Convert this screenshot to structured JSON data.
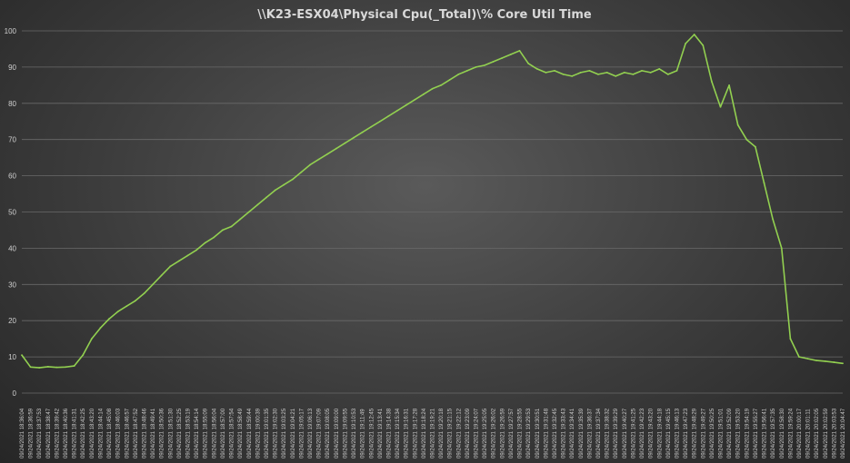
{
  "chart_data": {
    "type": "line",
    "title": "\\\\K23-ESX04\\Physical Cpu(_Total)\\% Core Util Time",
    "xlabel": "",
    "ylabel": "",
    "ylim": [
      0,
      100
    ],
    "yticks": [
      0,
      10,
      20,
      30,
      40,
      50,
      60,
      70,
      80,
      90,
      100
    ],
    "grid": true,
    "legend": "none",
    "color": "#92d050",
    "x": [
      "09/24/2021 18:36:04",
      "09/24/2021 18:36:59",
      "09/24/2021 18:37:53",
      "09/24/2021 18:38:47",
      "09/24/2021 18:39:42",
      "09/24/2021 18:40:36",
      "09/24/2021 18:41:31",
      "09/24/2021 18:42:25",
      "09/24/2021 18:43:20",
      "09/24/2021 18:44:14",
      "09/24/2021 18:45:08",
      "09/24/2021 18:46:03",
      "09/24/2021 18:46:57",
      "09/24/2021 18:47:52",
      "09/24/2021 18:48:46",
      "09/24/2021 18:49:41",
      "09/24/2021 18:50:36",
      "09/24/2021 18:51:30",
      "09/24/2021 18:52:25",
      "09/24/2021 18:53:19",
      "09/24/2021 18:54:14",
      "09/24/2021 18:55:09",
      "09/24/2021 18:56:04",
      "09/24/2021 18:57:00",
      "09/24/2021 18:57:54",
      "09/24/2021 18:58:49",
      "09/24/2021 18:59:44",
      "09/24/2021 19:00:39",
      "09/24/2021 19:01:35",
      "09/24/2021 19:02:30",
      "09/24/2021 19:03:25",
      "09/24/2021 19:04:21",
      "09/24/2021 19:05:17",
      "09/24/2021 19:06:13",
      "09/24/2021 19:07:09",
      "09/24/2021 19:08:05",
      "09/24/2021 19:09:00",
      "09/24/2021 19:09:55",
      "09/24/2021 19:10:53",
      "09/24/2021 19:11:49",
      "09/24/2021 19:12:45",
      "09/24/2021 19:13:41",
      "09/24/2021 19:14:38",
      "09/24/2021 19:15:34",
      "09/24/2021 19:16:31",
      "09/24/2021 19:17:28",
      "09/24/2021 19:18:24",
      "09/24/2021 19:19:21",
      "09/24/2021 19:20:18",
      "09/24/2021 19:21:15",
      "09/24/2021 19:22:12",
      "09/24/2021 19:23:09",
      "09/24/2021 19:24:07",
      "09/24/2021 19:25:05",
      "09/24/2021 19:26:02",
      "09/24/2021 19:26:59",
      "09/24/2021 19:27:57",
      "09/24/2021 19:28:55",
      "09/24/2021 19:29:53",
      "09/24/2021 19:30:51",
      "09/24/2021 19:31:48",
      "09/24/2021 19:32:45",
      "09/24/2021 19:33:43",
      "09/24/2021 19:34:41",
      "09/24/2021 19:35:39",
      "09/24/2021 19:36:37",
      "09/24/2021 19:37:34",
      "09/24/2021 19:38:32",
      "09/24/2021 19:39:29",
      "09/24/2021 19:40:27",
      "09/24/2021 19:41:25",
      "09/24/2021 19:42:23",
      "09/24/2021 19:43:20",
      "09/24/2021 19:44:18",
      "09/24/2021 19:45:15",
      "09/24/2021 19:46:13",
      "09/24/2021 19:47:23",
      "09/24/2021 19:48:29",
      "09/24/2021 19:49:27",
      "09/24/2021 19:50:25",
      "09/24/2021 19:51:01",
      "09/24/2021 19:52:09",
      "09/24/2021 19:53:20",
      "09/24/2021 19:54:19",
      "09/24/2021 19:55:27",
      "09/24/2021 19:56:41",
      "09/24/2021 19:57:35",
      "09/24/2021 19:58:30",
      "09/24/2021 19:59:24",
      "09/24/2021 20:00:17",
      "09/24/2021 20:01:11",
      "09/24/2021 20:02:05",
      "09/24/2021 20:02:59",
      "09/24/2021 20:03:53",
      "09/24/2021 20:04:47"
    ],
    "series": [
      {
        "values": [
          10.5,
          7.2,
          7.0,
          7.3,
          7.1,
          7.2,
          7.5,
          10.5,
          15.0,
          18.0,
          20.5,
          22.5,
          24.0,
          25.5,
          27.5,
          30.0,
          32.5,
          35.0,
          36.5,
          38.0,
          39.5,
          41.5,
          43.0,
          45.0,
          46.0,
          48.0,
          50.0,
          52.0,
          54.0,
          56.0,
          57.5,
          59.0,
          61.0,
          63.0,
          64.5,
          66.0,
          67.5,
          69.0,
          70.5,
          72.0,
          73.5,
          75.0,
          76.5,
          78.0,
          79.5,
          81.0,
          82.5,
          84.0,
          85.0,
          86.5,
          88.0,
          89.0,
          90.0,
          90.5,
          91.5,
          92.5,
          93.5,
          94.5,
          91.0,
          89.5,
          88.5,
          89.0,
          88.0,
          87.5,
          88.5,
          89.0,
          88.0,
          88.5,
          87.5,
          88.5,
          88.0,
          89.0,
          88.5,
          89.5,
          88.0,
          89.0,
          96.5,
          99.0,
          96.0,
          86.0,
          79.0,
          85.0,
          74.0,
          70.0,
          68.0,
          58.0,
          48.0,
          40.0,
          15.0,
          10.0,
          9.5,
          9.0,
          8.8,
          8.5,
          8.2
        ]
      }
    ]
  }
}
